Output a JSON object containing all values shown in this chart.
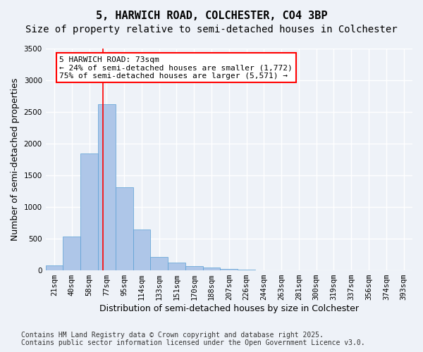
{
  "title1": "5, HARWICH ROAD, COLCHESTER, CO4 3BP",
  "title2": "Size of property relative to semi-detached houses in Colchester",
  "xlabel": "Distribution of semi-detached houses by size in Colchester",
  "ylabel": "Number of semi-detached properties",
  "categories": [
    "21sqm",
    "40sqm",
    "58sqm",
    "77sqm",
    "95sqm",
    "114sqm",
    "133sqm",
    "151sqm",
    "170sqm",
    "188sqm",
    "207sqm",
    "226sqm",
    "244sqm",
    "263sqm",
    "281sqm",
    "300sqm",
    "319sqm",
    "337sqm",
    "356sqm",
    "374sqm",
    "393sqm"
  ],
  "values": [
    80,
    530,
    1840,
    2620,
    1310,
    640,
    210,
    120,
    70,
    40,
    20,
    10,
    5,
    0,
    0,
    0,
    0,
    0,
    0,
    0,
    0
  ],
  "bar_color": "#aec6e8",
  "bar_edge_color": "#5a9fd4",
  "vline_color": "red",
  "property_label": "5 HARWICH ROAD: 73sqm",
  "pct_smaller": 24,
  "count_smaller": "1,772",
  "pct_larger": 75,
  "count_larger": "5,571",
  "ylim": [
    0,
    3500
  ],
  "yticks": [
    0,
    500,
    1000,
    1500,
    2000,
    2500,
    3000,
    3500
  ],
  "footnote1": "Contains HM Land Registry data © Crown copyright and database right 2025.",
  "footnote2": "Contains public sector information licensed under the Open Government Licence v3.0.",
  "background_color": "#eef2f8",
  "grid_color": "#ffffff",
  "title_fontsize": 11,
  "subtitle_fontsize": 10,
  "axis_label_fontsize": 9,
  "tick_fontsize": 7.5,
  "annotation_fontsize": 8,
  "footnote_fontsize": 7
}
